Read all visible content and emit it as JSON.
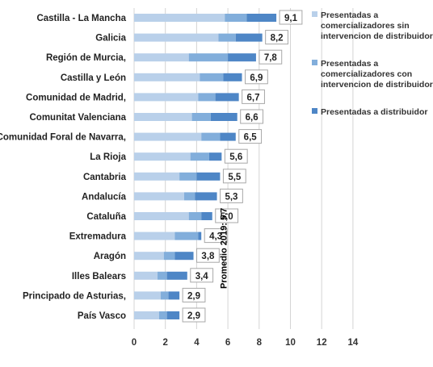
{
  "chart_data": {
    "type": "bar",
    "orientation": "horizontal",
    "stacked": true,
    "categories": [
      "Castilla - La Mancha",
      "Galicia",
      "Región de Murcia,",
      "Castilla y León",
      "Comunidad de Madrid,",
      "Comunitat Valenciana",
      "Comunidad Foral de Navarra,",
      "La Rioja",
      "Cantabria",
      "Andalucía",
      "Cataluña",
      "Extremadura",
      "Aragón",
      "Illes Balears",
      "Principado de Asturias,",
      "País Vasco"
    ],
    "series": [
      {
        "name": "Presentadas a comercializadores sin intervencion de distribuidor",
        "color": "#b9d0ea",
        "values": [
          5.8,
          5.4,
          3.5,
          4.2,
          4.1,
          3.7,
          4.3,
          3.6,
          2.9,
          3.2,
          3.5,
          2.6,
          1.9,
          1.5,
          1.7,
          1.6
        ]
      },
      {
        "name": "Presentadas a comercializadores con intervencion de distribuidor",
        "color": "#82aedb",
        "values": [
          1.4,
          1.1,
          2.5,
          1.5,
          1.1,
          1.2,
          1.2,
          1.2,
          1.1,
          0.7,
          0.8,
          1.5,
          0.7,
          0.6,
          0.5,
          0.5
        ]
      },
      {
        "name": "Presentadas a distribuidor",
        "color": "#4e86c6",
        "values": [
          1.9,
          1.7,
          1.8,
          1.2,
          1.5,
          1.7,
          1.0,
          0.8,
          1.5,
          1.4,
          0.7,
          0.2,
          1.2,
          1.3,
          0.7,
          0.8
        ]
      }
    ],
    "value_labels": [
      "9,1",
      "8,2",
      "7,8",
      "6,9",
      "6,7",
      "6,6",
      "6,5",
      "5,6",
      "5,5",
      "5,3",
      "5,0",
      "4,3",
      "3,8",
      "3,4",
      "2,9",
      "2,9"
    ],
    "xlim": [
      0,
      14
    ],
    "xticks": [
      0,
      2,
      4,
      6,
      8,
      10,
      12,
      14
    ],
    "xtick_labels": [
      "0",
      "2",
      "4",
      "6",
      "8",
      "10",
      "12",
      "14"
    ],
    "grid": "vertical",
    "legend_position": "right",
    "annotation": {
      "text": "Promedio 2019: 5,7",
      "value": 5.7
    },
    "xlabel": "",
    "ylabel": "",
    "title": ""
  }
}
